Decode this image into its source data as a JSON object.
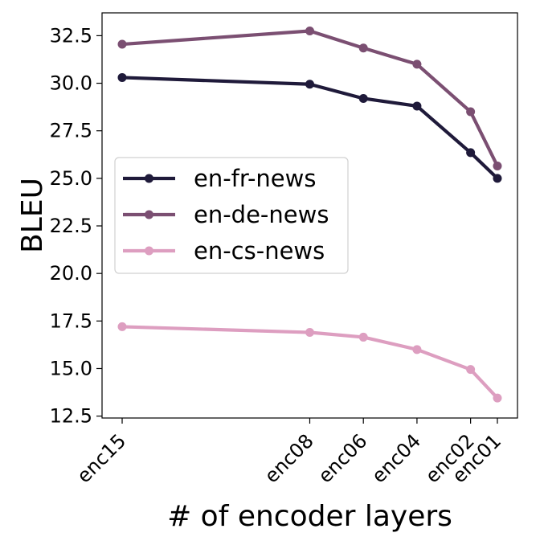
{
  "chart_data": {
    "type": "line",
    "title": "",
    "xlabel": "# of encoder layers",
    "ylabel": "BLEU",
    "x": [
      15,
      8,
      6,
      4,
      2,
      1
    ],
    "x_tick_labels": [
      "enc15",
      "enc08",
      "enc06",
      "enc04",
      "enc02",
      "enc01"
    ],
    "xlim": [
      0.25,
      15.75
    ],
    "ylim": [
      12.4,
      33.7
    ],
    "y_ticks": [
      12.5,
      15.0,
      17.5,
      20.0,
      22.5,
      25.0,
      27.5,
      30.0,
      32.5
    ],
    "y_tick_labels": [
      "12.5",
      "15.0",
      "17.5",
      "20.0",
      "22.5",
      "25.0",
      "27.5",
      "30.0",
      "32.5"
    ],
    "grid": false,
    "legend_position": "center-left",
    "series": [
      {
        "name": "en-fr-news",
        "color": "#1f1a3a",
        "values": [
          30.3,
          29.95,
          29.2,
          28.8,
          26.35,
          25.0
        ]
      },
      {
        "name": "en-de-news",
        "color": "#7b4f72",
        "values": [
          32.05,
          32.75,
          31.85,
          31.0,
          28.5,
          25.65
        ]
      },
      {
        "name": "en-cs-news",
        "color": "#dd9ec0",
        "values": [
          17.2,
          16.9,
          16.65,
          16.0,
          14.95,
          13.45
        ]
      }
    ]
  }
}
